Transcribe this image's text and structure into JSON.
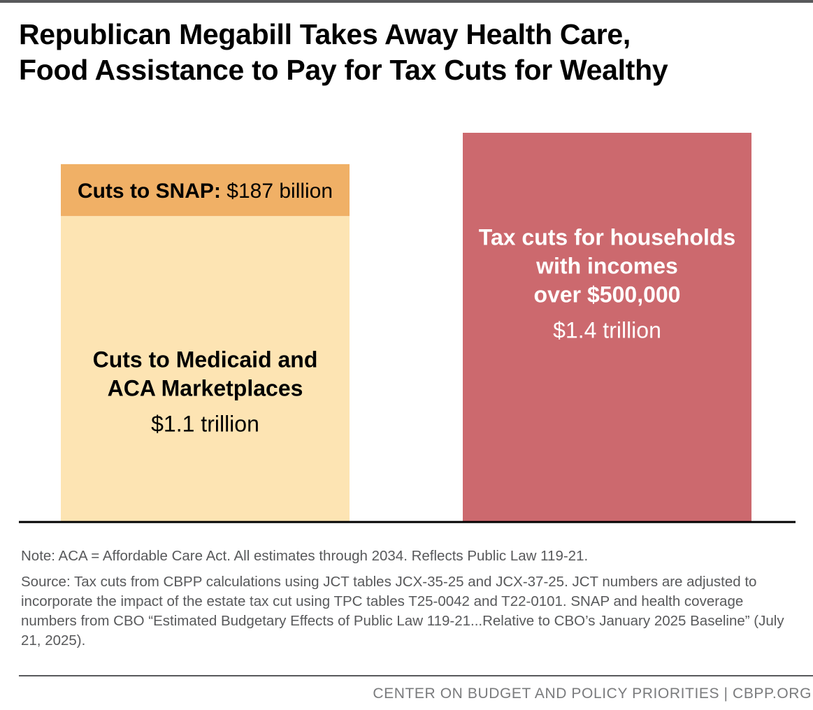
{
  "title_lines": [
    "Republican Megabill Takes Away Health Care,",
    "Food Assistance to Pay for Tax Cuts for Wealthy"
  ],
  "chart_data": {
    "type": "bar",
    "stacked": true,
    "unit": "trillion dollars",
    "ylim": [
      0,
      1.4
    ],
    "grid": false,
    "bars": [
      {
        "id": "cuts",
        "segments": [
          {
            "name": "Cuts to Medicaid and ACA Marketplaces",
            "value": 1.1,
            "color": "#fde4b3",
            "label_lines": [
              "Cuts to Medicaid and",
              "ACA Marketplaces"
            ],
            "value_label": "$1.1 trillion"
          },
          {
            "name": "Cuts to SNAP",
            "value": 0.187,
            "color": "#f0b066",
            "label_bold": "Cuts to SNAP:",
            "value_label": "$187 billion"
          }
        ]
      },
      {
        "id": "tax",
        "segments": [
          {
            "name": "Tax cuts for households with incomes over $500,000",
            "value": 1.4,
            "color": "#cc696e",
            "label_lines": [
              "Tax cuts for households",
              "with incomes",
              "over $500,000"
            ],
            "value_label": "$1.4 trillion"
          }
        ]
      }
    ]
  },
  "notes": {
    "note": "Note: ACA = Affordable Care Act. All estimates through 2034. Reflects Public Law 119-21.",
    "source": "Source: Tax cuts from CBPP calculations using JCT tables JCX-35-25 and JCX-37-25. JCT numbers are adjusted to incorporate the impact of the estate tax cut using TPC tables T25-0042 and T22-0101. SNAP and health coverage numbers from CBO “Estimated Budgetary Effects of Public Law 119-21...Relative to CBO’s January 2025 Baseline” (July 21, 2025)."
  },
  "footer": "CENTER ON BUDGET AND POLICY PRIORITIES | CBPP.ORG"
}
